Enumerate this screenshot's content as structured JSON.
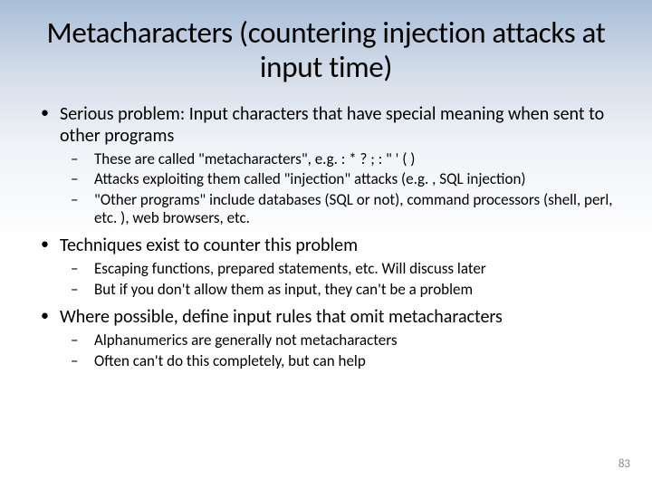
{
  "slide": {
    "title": "Metacharacters (countering injection attacks at input time)",
    "bullets": [
      {
        "text": "Serious problem: Input characters that have special meaning when sent to other programs",
        "subs": [
          "These are called \"metacharacters\", e.g. :   * ? ; : \" ' ( )",
          "Attacks exploiting them called \"injection\" attacks (e.g. , SQL injection)",
          "\"Other programs\" include databases (SQL or not), command processors (shell, perl, etc. ), web browsers, etc."
        ]
      },
      {
        "text": "Techniques exist to counter this problem",
        "subs": [
          "Escaping functions, prepared statements, etc.  Will discuss later",
          "But if you don't allow them as input, they can't be a problem"
        ]
      },
      {
        "text": "Where possible, define input rules that omit metacharacters",
        "subs": [
          "Alphanumerics are generally not metacharacters",
          "Often can't do this completely, but can help"
        ]
      }
    ],
    "page_number": "83"
  },
  "style": {
    "background_gradient_top": "#a8bdd8",
    "background_gradient_bottom": "#ffffff",
    "text_color": "#000000",
    "page_number_color": "#8a8a8a",
    "title_fontsize": 33,
    "bullet_l1_fontsize": 20,
    "bullet_l2_fontsize": 17,
    "page_number_fontsize": 13
  }
}
